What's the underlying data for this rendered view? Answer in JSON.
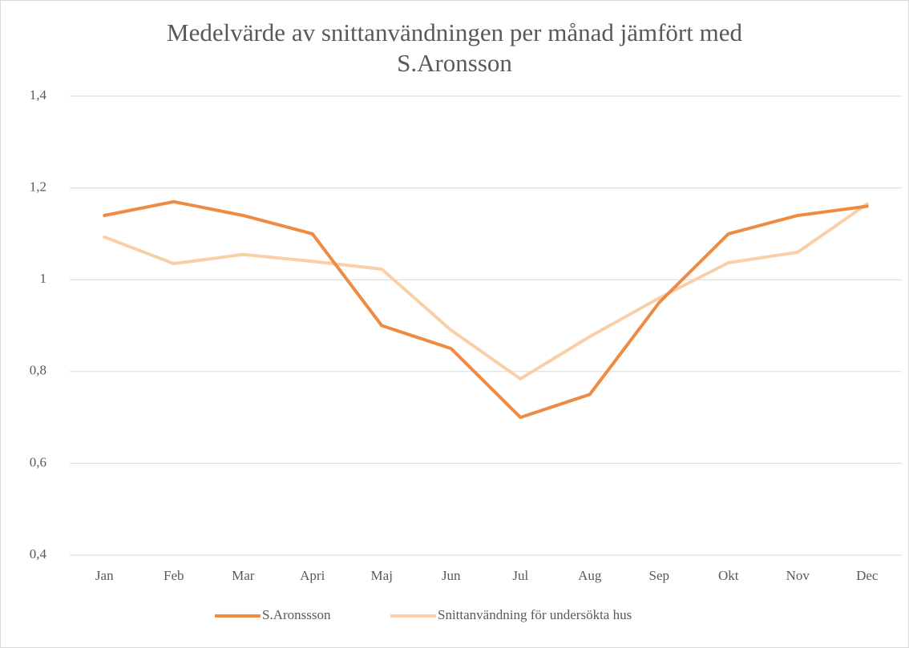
{
  "chart_data": {
    "type": "line",
    "title": "Medelvärde av snittanvändningen per månad jämfört med S.Aronsson",
    "categories": [
      "Jan",
      "Feb",
      "Mar",
      "Apri",
      "Maj",
      "Jun",
      "Jul",
      "Aug",
      "Sep",
      "Okt",
      "Nov",
      "Dec"
    ],
    "series": [
      {
        "name": "S.Aronssson",
        "color": "#ef8a42",
        "values": [
          1.14,
          1.17,
          1.14,
          1.1,
          0.9,
          0.85,
          0.7,
          0.75,
          0.95,
          1.1,
          1.14,
          1.16
        ]
      },
      {
        "name": "Snittanvändning för undersökta hus",
        "color": "#f9cfa8",
        "values": [
          1.093,
          1.035,
          1.055,
          1.04,
          1.023,
          0.89,
          0.784,
          0.876,
          0.96,
          1.037,
          1.06,
          1.165
        ]
      }
    ],
    "ylim": [
      0.4,
      1.4
    ],
    "yticks": [
      {
        "value": 0.4,
        "label": "0,4"
      },
      {
        "value": 0.6,
        "label": "0,6"
      },
      {
        "value": 0.8,
        "label": "0,8"
      },
      1,
      {
        "value": 1.2,
        "label": "1,2"
      },
      {
        "value": 1.4,
        "label": "1,4"
      }
    ],
    "grid": true,
    "legend": "bottom"
  }
}
